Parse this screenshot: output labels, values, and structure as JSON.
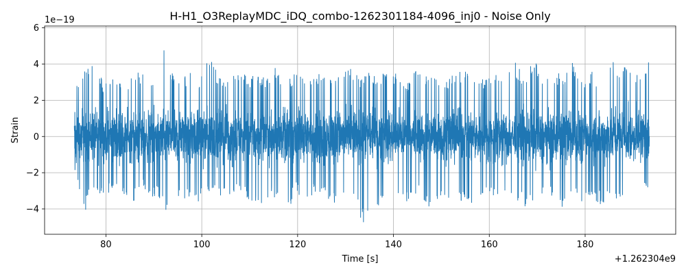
{
  "chart_data": {
    "type": "line",
    "title": "H-H1_O3ReplayMDC_iDQ_combo-1262301184-4096_inj0 - Noise Only",
    "xlabel": "Time [s]",
    "ylabel": "Strain",
    "x_offset_label": "+1.262304e9",
    "y_exponent_label": "1e−19",
    "xlim": [
      67.2,
      198.9
    ],
    "ylim": [
      -5.4,
      6.1
    ],
    "x_ticks": [
      80,
      100,
      120,
      140,
      160,
      180
    ],
    "y_ticks": [
      -4,
      -2,
      0,
      2,
      4,
      6
    ],
    "x_tick_labels": [
      "80",
      "100",
      "120",
      "140",
      "160",
      "180"
    ],
    "y_tick_labels": [
      "−4",
      "−2",
      "0",
      "2",
      "4",
      "6"
    ],
    "grid": true,
    "legend": "none",
    "series": [
      {
        "color": "#1f77b4",
        "x_range": [
          73.4,
          193.4
        ],
        "envelope_upper": [
          2.9,
          3.5,
          4.6,
          3.0,
          3.2,
          3.0,
          3.4,
          3.6,
          3.0,
          5.5,
          3.8,
          3.2,
          3.6,
          3.1,
          4.6,
          3.5,
          3.2,
          3.9,
          3.4,
          3.3,
          3.3,
          3.8,
          3.0,
          3.5,
          3.2,
          3.6,
          3.4,
          3.2,
          3.5,
          3.9,
          3.3,
          3.6,
          3.4,
          3.8,
          3.2,
          3.1,
          4.0,
          3.3,
          3.4,
          3.3,
          3.5,
          4.0,
          3.2,
          3.3,
          3.6,
          3.9,
          4.1,
          3.3,
          4.3,
          3.3,
          3.7,
          3.4,
          4.1,
          3.2,
          3.6,
          3.1,
          4.3,
          3.9,
          4.0,
          3.5,
          4.6
        ],
        "envelope_lower": [
          -1.9,
          -4.3,
          -3.0,
          -3.4,
          -3.1,
          -3.3,
          -4.0,
          -2.8,
          -3.3,
          -3.5,
          -4.7,
          -3.3,
          -3.6,
          -3.6,
          -3.0,
          -3.4,
          -3.5,
          -3.2,
          -3.4,
          -3.8,
          -3.6,
          -3.4,
          -4.9,
          -3.1,
          -3.5,
          -3.2,
          -3.3,
          -3.7,
          -3.6,
          -3.4,
          -4.9,
          -4.6,
          -3.6,
          -3.5,
          -3.4,
          -3.8,
          -3.3,
          -3.9,
          -3.4,
          -3.5,
          -3.6,
          -4.0,
          -3.3,
          -3.5,
          -3.3,
          -3.6,
          -3.5,
          -3.9,
          -3.6,
          -3.4,
          -3.3,
          -4.1,
          -3.5,
          -3.6,
          -3.4,
          -3.8,
          -3.3,
          -3.7,
          -3.6,
          -3.4,
          -3.0
        ]
      }
    ]
  }
}
